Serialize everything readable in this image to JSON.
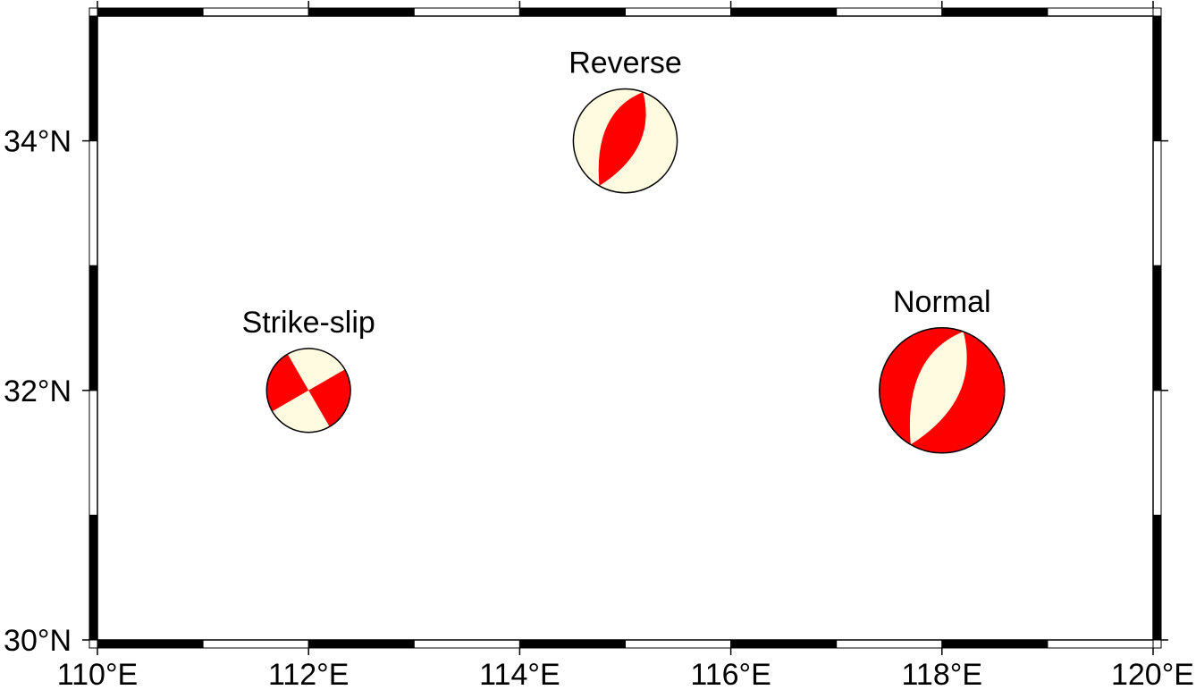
{
  "map": {
    "longitude_range": [
      110,
      120
    ],
    "latitude_range": [
      30,
      35
    ],
    "x_ticks": [
      {
        "lon": 110,
        "label": "110°E"
      },
      {
        "lon": 112,
        "label": "112°E"
      },
      {
        "lon": 114,
        "label": "114°E"
      },
      {
        "lon": 116,
        "label": "116°E"
      },
      {
        "lon": 118,
        "label": "118°E"
      },
      {
        "lon": 120,
        "label": "120°E"
      }
    ],
    "y_ticks": [
      {
        "lat": 30,
        "label": "30°N"
      },
      {
        "lat": 32,
        "label": "32°N"
      },
      {
        "lat": 34,
        "label": "34°N"
      }
    ],
    "frame_style": "alternating black/white fancy frame, 1° segments",
    "colors": {
      "compressional": "#ff0000",
      "extensional": "#fffbe0",
      "outline": "#000000",
      "frame_dark": "#000000",
      "frame_light": "#ffffff"
    }
  },
  "events": [
    {
      "label": "Strike-slip",
      "lon": 112,
      "lat": 32,
      "mechanism": "strike-slip",
      "relative_size": 0.67
    },
    {
      "label": "Reverse",
      "lon": 115,
      "lat": 34,
      "mechanism": "reverse",
      "relative_size": 0.83
    },
    {
      "label": "Normal",
      "lon": 118,
      "lat": 32,
      "mechanism": "normal",
      "relative_size": 1.0
    }
  ]
}
